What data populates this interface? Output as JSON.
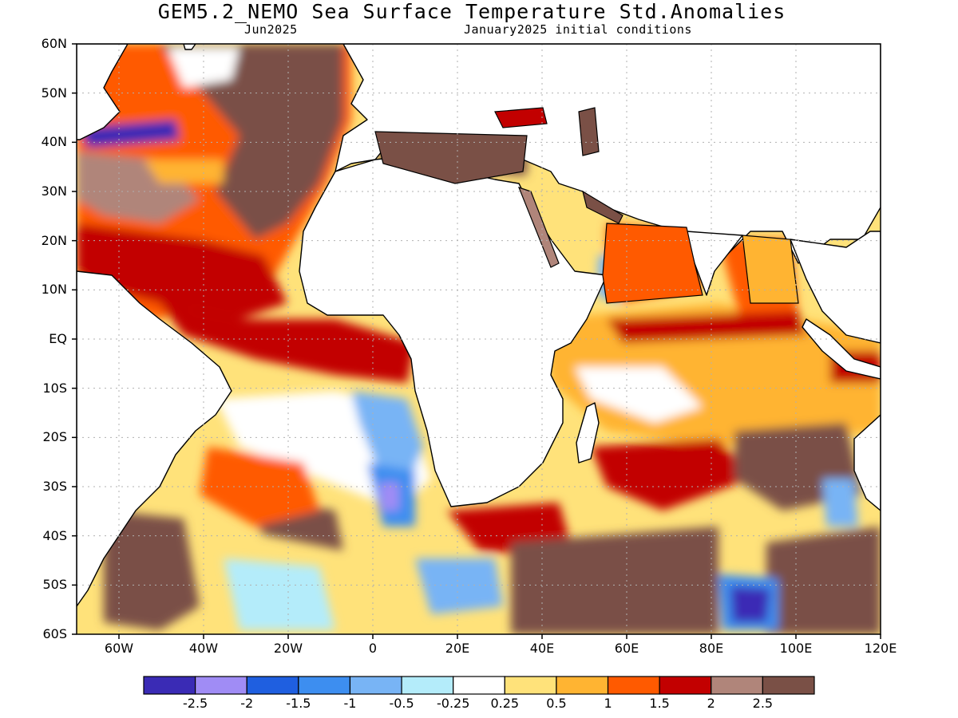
{
  "header": {
    "title": "GEM5.2_NEMO Sea Surface Temperature Std.Anomalies",
    "valid_month": "Jun2025",
    "init_conditions": "January2025 initial conditions"
  },
  "map": {
    "lon_range": [
      -70,
      120
    ],
    "lat_range": [
      -60,
      60
    ],
    "lat_labels": [
      "60N",
      "50N",
      "40N",
      "30N",
      "20N",
      "10N",
      "EQ",
      "10S",
      "20S",
      "30S",
      "40S",
      "50S",
      "60S"
    ],
    "lon_labels": [
      "60W",
      "40W",
      "20W",
      "0",
      "20E",
      "40E",
      "60E",
      "80E",
      "100E",
      "120E"
    ],
    "colors": {
      "land": "#ffffff",
      "coast": "#000000",
      "grid": "#b0b0b0"
    }
  },
  "colorbar": {
    "labels": [
      "-2.5",
      "-2",
      "-1.5",
      "-1",
      "-0.5",
      "-0.25",
      "0.25",
      "0.5",
      "1",
      "1.5",
      "2",
      "2.5"
    ],
    "colors": [
      "#3a2bb5",
      "#a08cf5",
      "#1f5fe0",
      "#3d8ef0",
      "#78b4f5",
      "#b4ecfa",
      "#ffffff",
      "#ffe27a",
      "#ffb432",
      "#ff5a00",
      "#c20000",
      "#b0857a",
      "#7a5046"
    ]
  }
}
